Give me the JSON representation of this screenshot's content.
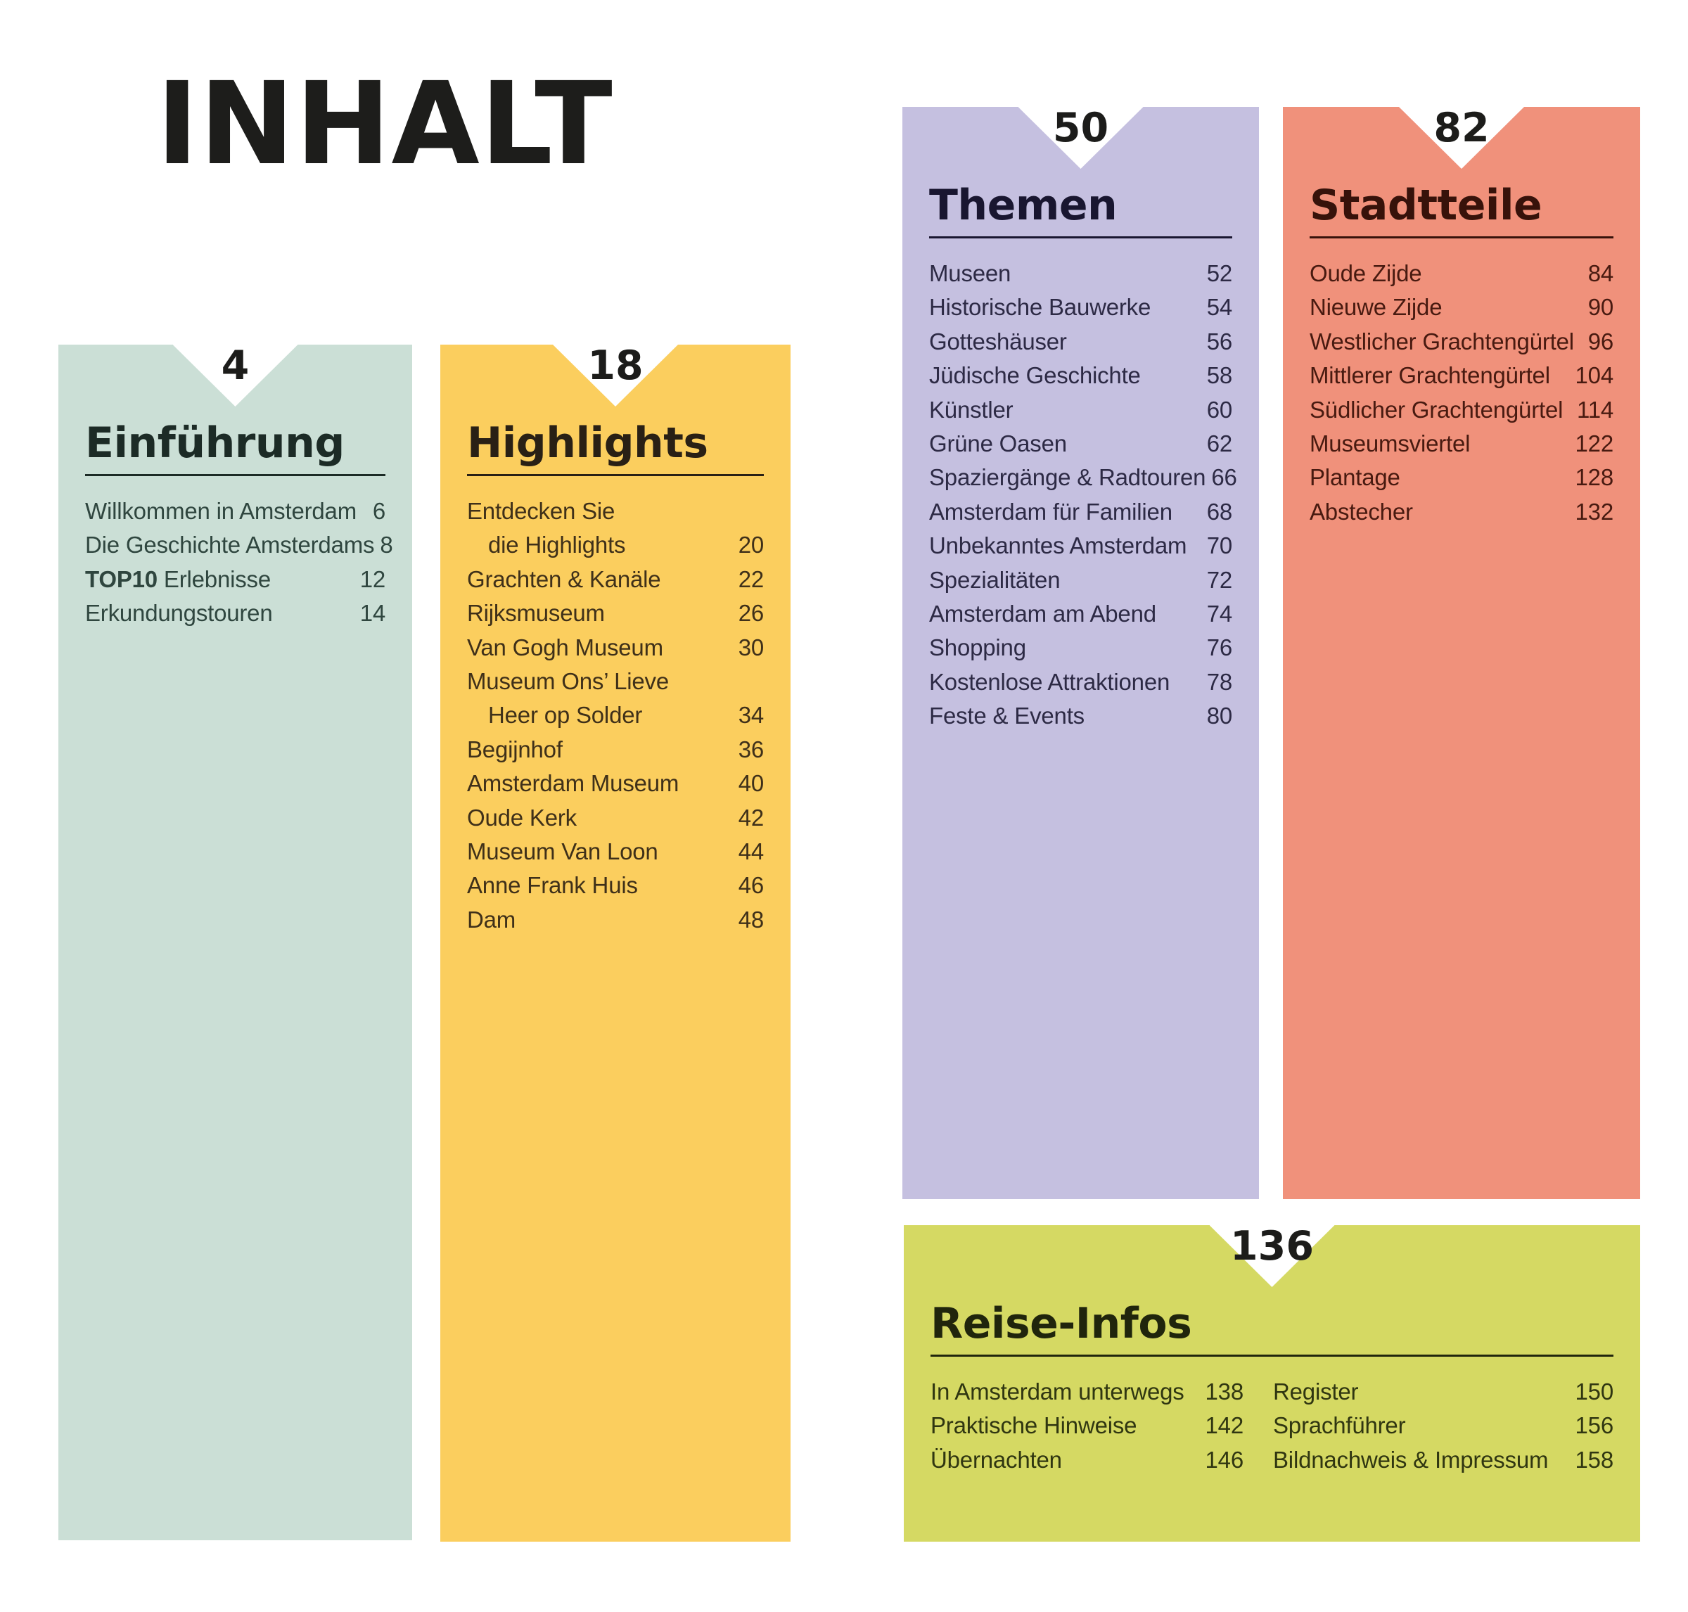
{
  "page": {
    "title": "INHALT",
    "background": "#ffffff",
    "title_color": "#1d1d1b",
    "notch_number_color": "#1c1c1a"
  },
  "sections": {
    "einfuehrung": {
      "page_number": "4",
      "heading": "Einführung",
      "colors": {
        "panel": "#cbdfd6",
        "heading": "#1c2b26",
        "ink": "#2f463f"
      },
      "items": [
        {
          "label": "Willkommen in Amsterdam",
          "page": "6"
        },
        {
          "label": "Die Geschichte Amsterdams",
          "page": "8"
        },
        {
          "label_bold": "TOP10",
          "label": " Erlebnisse",
          "page": "12"
        },
        {
          "label": "Erkundungstouren",
          "page": "14"
        }
      ]
    },
    "highlights": {
      "page_number": "18",
      "heading": "Highlights",
      "colors": {
        "panel": "#fbce5e",
        "heading": "#292015",
        "ink": "#3f3019"
      },
      "items": [
        {
          "label": "Entdecken Sie",
          "label2": "die Highlights",
          "page": "20"
        },
        {
          "label": "Grachten & Kanäle",
          "page": "22"
        },
        {
          "label": "Rijksmuseum",
          "page": "26"
        },
        {
          "label": "Van Gogh Museum",
          "page": "30"
        },
        {
          "label": "Museum Ons’ Lieve",
          "label2": "Heer op Solder",
          "page": "34"
        },
        {
          "label": "Begijnhof",
          "page": "36"
        },
        {
          "label": "Amsterdam Museum",
          "page": "40"
        },
        {
          "label": "Oude Kerk",
          "page": "42"
        },
        {
          "label": "Museum Van Loon",
          "page": "44"
        },
        {
          "label": "Anne Frank Huis",
          "page": "46"
        },
        {
          "label": "Dam",
          "page": "48"
        }
      ]
    },
    "themen": {
      "page_number": "50",
      "heading": "Themen",
      "colors": {
        "panel": "#c5c0e0",
        "heading": "#191630",
        "ink": "#2d2a45"
      },
      "items": [
        {
          "label": "Museen",
          "page": "52"
        },
        {
          "label": "Historische Bauwerke",
          "page": "54"
        },
        {
          "label": "Gotteshäuser",
          "page": "56"
        },
        {
          "label": "Jüdische Geschichte",
          "page": "58"
        },
        {
          "label": "Künstler",
          "page": "60"
        },
        {
          "label": "Grüne Oasen",
          "page": "62"
        },
        {
          "label": "Spaziergänge & Radtouren",
          "page": "66"
        },
        {
          "label": "Amsterdam für Familien",
          "page": "68"
        },
        {
          "label": "Unbekanntes Amsterdam",
          "page": "70"
        },
        {
          "label": "Spezialitäten",
          "page": "72"
        },
        {
          "label": "Amsterdam am Abend",
          "page": "74"
        },
        {
          "label": "Shopping",
          "page": "76"
        },
        {
          "label": "Kostenlose Attraktionen",
          "page": "78"
        },
        {
          "label": "Feste & Events",
          "page": "80"
        }
      ]
    },
    "stadtteile": {
      "page_number": "82",
      "heading": "Stadtteile",
      "colors": {
        "panel": "#f0917b",
        "heading": "#37120a",
        "ink": "#481a10"
      },
      "items": [
        {
          "label": "Oude Zijde",
          "page": "84"
        },
        {
          "label": "Nieuwe Zijde",
          "page": "90"
        },
        {
          "label": "Westlicher Grachtengürtel",
          "page": "96"
        },
        {
          "label": "Mittlerer Grachtengürtel",
          "page": "104"
        },
        {
          "label": "Südlicher Grachtengürtel",
          "page": "114"
        },
        {
          "label": "Museumsviertel",
          "page": "122"
        },
        {
          "label": "Plantage",
          "page": "128"
        },
        {
          "label": "Abstecher",
          "page": "132"
        }
      ]
    },
    "reise_infos": {
      "page_number": "136",
      "heading": "Reise-Infos",
      "colors": {
        "panel": "#d5d963",
        "heading": "#20250c",
        "ink": "#303611"
      },
      "columns": [
        {
          "items": [
            {
              "label": "In Amsterdam unterwegs",
              "page": "138"
            },
            {
              "label": "Praktische Hinweise",
              "page": "142"
            },
            {
              "label": "Übernachten",
              "page": "146"
            }
          ]
        },
        {
          "items": [
            {
              "label": "Register",
              "page": "150"
            },
            {
              "label": "Sprachführer",
              "page": "156"
            },
            {
              "label": "Bildnachweis & Impressum",
              "page": "158"
            }
          ]
        }
      ]
    }
  }
}
